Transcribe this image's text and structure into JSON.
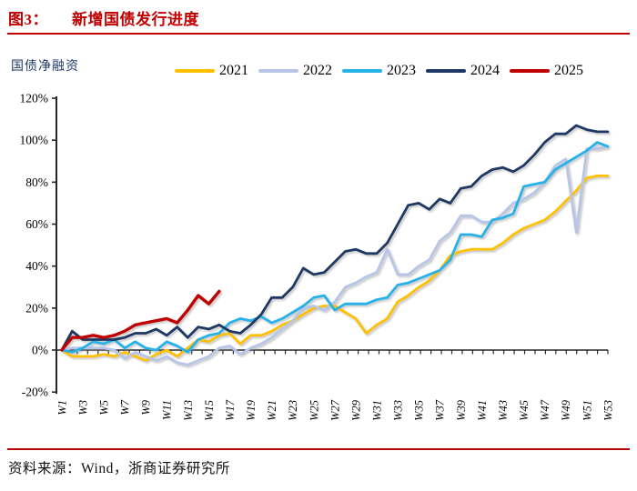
{
  "title": {
    "prefix": "图3：",
    "text": "新增国债发行进度"
  },
  "chart_note": "国债净融资",
  "source": {
    "label": "资料来源：",
    "text": "Wind，浙商证券研究所"
  },
  "colors": {
    "accent_red": "#C00000",
    "axis": "#262626",
    "note_blue": "#1F3864",
    "text": "#111111"
  },
  "chart_data": {
    "type": "line",
    "title": "新增国债发行进度",
    "ylabel": "国债净融资",
    "ylim": [
      -20,
      120
    ],
    "grid": false,
    "legend_position": "top",
    "yticks": [
      {
        "value": 120,
        "label": "120%"
      },
      {
        "value": 100,
        "label": "100%"
      },
      {
        "value": 80,
        "label": "80%"
      },
      {
        "value": 60,
        "label": "60%"
      },
      {
        "value": 40,
        "label": "40%"
      },
      {
        "value": 20,
        "label": "20%"
      },
      {
        "value": 0,
        "label": "0%"
      },
      {
        "value": -20,
        "label": "-20%"
      }
    ],
    "categories": [
      "W1",
      "W2",
      "W3",
      "W4",
      "W5",
      "W6",
      "W7",
      "W8",
      "W9",
      "W10",
      "W11",
      "W12",
      "W13",
      "W14",
      "W15",
      "W16",
      "W17",
      "W18",
      "W19",
      "W20",
      "W21",
      "W22",
      "W23",
      "W24",
      "W25",
      "W26",
      "W27",
      "W28",
      "W29",
      "W30",
      "W31",
      "W32",
      "W33",
      "W34",
      "W35",
      "W36",
      "W37",
      "W38",
      "W39",
      "W40",
      "W41",
      "W42",
      "W43",
      "W44",
      "W45",
      "W46",
      "W47",
      "W48",
      "W49",
      "W50",
      "W51",
      "W52",
      "W53"
    ],
    "x_label_step": 2,
    "series": [
      {
        "name": "2021",
        "color": "#FFC000",
        "values": [
          0,
          -3,
          -3,
          -3,
          -2,
          -3,
          -1,
          -3,
          -5,
          -2,
          0,
          -3,
          1,
          5,
          4,
          7,
          8,
          3,
          7,
          7,
          9,
          12,
          14,
          17,
          20,
          21,
          21,
          18,
          15,
          8,
          12,
          15,
          23,
          26,
          30,
          33,
          38,
          45,
          47,
          48,
          48,
          48,
          51,
          55,
          58,
          60,
          62,
          66,
          71,
          76,
          82,
          83,
          83
        ]
      },
      {
        "name": "2022",
        "color": "#B7C6E8",
        "values": [
          0,
          1,
          1,
          1,
          1,
          0,
          -4,
          -1,
          -3,
          -5,
          -3,
          -6,
          -7,
          -5,
          -3,
          1,
          2,
          -2,
          1,
          3,
          6,
          10,
          14,
          20,
          21,
          19,
          23,
          30,
          32,
          35,
          37,
          48,
          36,
          36,
          40,
          43,
          52,
          56,
          64,
          64,
          61,
          61,
          65,
          70,
          72,
          75,
          80,
          88,
          91,
          56,
          96,
          96,
          97
        ]
      },
      {
        "name": "2023",
        "color": "#27B2E8",
        "values": [
          0,
          -1,
          1,
          4,
          3,
          5,
          1,
          4,
          1,
          0,
          4,
          2,
          -1,
          5,
          7,
          8,
          13,
          15,
          14,
          16,
          13,
          15,
          18,
          21,
          25,
          26,
          19,
          22,
          22,
          22,
          24,
          25,
          31,
          32,
          34,
          36,
          38,
          43,
          55,
          55,
          54,
          62,
          63,
          65,
          78,
          79,
          80,
          86,
          89,
          92,
          95,
          99,
          97
        ]
      },
      {
        "name": "2024",
        "color": "#1F3864",
        "values": [
          0,
          9,
          5,
          5,
          5,
          5,
          6,
          8,
          8,
          10,
          7,
          11,
          6,
          11,
          10,
          12,
          9,
          8,
          12,
          17,
          25,
          25,
          30,
          39,
          36,
          37,
          42,
          47,
          48,
          46,
          46,
          51,
          60,
          69,
          70,
          67,
          72,
          70,
          77,
          78,
          83,
          86,
          87,
          85,
          88,
          93,
          99,
          103,
          103,
          107,
          105,
          104,
          104
        ]
      },
      {
        "name": "2025",
        "color": "#C00000",
        "values": [
          0,
          6,
          6,
          7,
          6,
          7,
          9,
          12,
          13,
          14,
          15,
          13,
          19,
          26,
          22,
          28
        ]
      }
    ]
  }
}
